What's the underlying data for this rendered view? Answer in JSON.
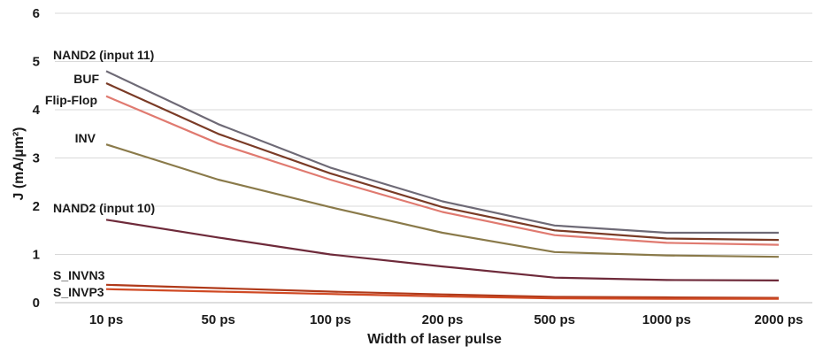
{
  "chart_data": {
    "type": "line",
    "xlabel": "Width of laser pulse",
    "ylabel": "J (mA/µm²)",
    "categories": [
      "10 ps",
      "50 ps",
      "100 ps",
      "200 ps",
      "500 ps",
      "1000 ps",
      "2000 ps"
    ],
    "yticks": [
      "0",
      "1",
      "2",
      "3",
      "4",
      "5",
      "6"
    ],
    "ylim": [
      0,
      6
    ],
    "grid": true,
    "legend": "none",
    "series": [
      {
        "name": "NAND2 (input 11)",
        "color": "#6e6a76",
        "values": [
          4.8,
          3.7,
          2.8,
          2.1,
          1.6,
          1.45,
          1.45
        ]
      },
      {
        "name": "BUF",
        "color": "#7a3b26",
        "values": [
          4.55,
          3.5,
          2.68,
          1.98,
          1.5,
          1.33,
          1.3
        ]
      },
      {
        "name": "Flip-Flop",
        "color": "#e07a70",
        "values": [
          4.28,
          3.3,
          2.55,
          1.88,
          1.4,
          1.24,
          1.2
        ]
      },
      {
        "name": "INV",
        "color": "#8a7a4a",
        "values": [
          3.28,
          2.55,
          1.98,
          1.45,
          1.05,
          0.98,
          0.95
        ]
      },
      {
        "name": "NAND2 (input 10)",
        "color": "#6e2a3a",
        "values": [
          1.72,
          1.35,
          1.0,
          0.75,
          0.52,
          0.47,
          0.46
        ]
      },
      {
        "name": "S_INVN3",
        "color": "#b03a1a",
        "values": [
          0.37,
          0.3,
          0.23,
          0.17,
          0.12,
          0.11,
          0.1
        ]
      },
      {
        "name": "S_INVP3",
        "color": "#d04a24",
        "values": [
          0.28,
          0.23,
          0.18,
          0.13,
          0.09,
          0.08,
          0.08
        ]
      }
    ]
  }
}
